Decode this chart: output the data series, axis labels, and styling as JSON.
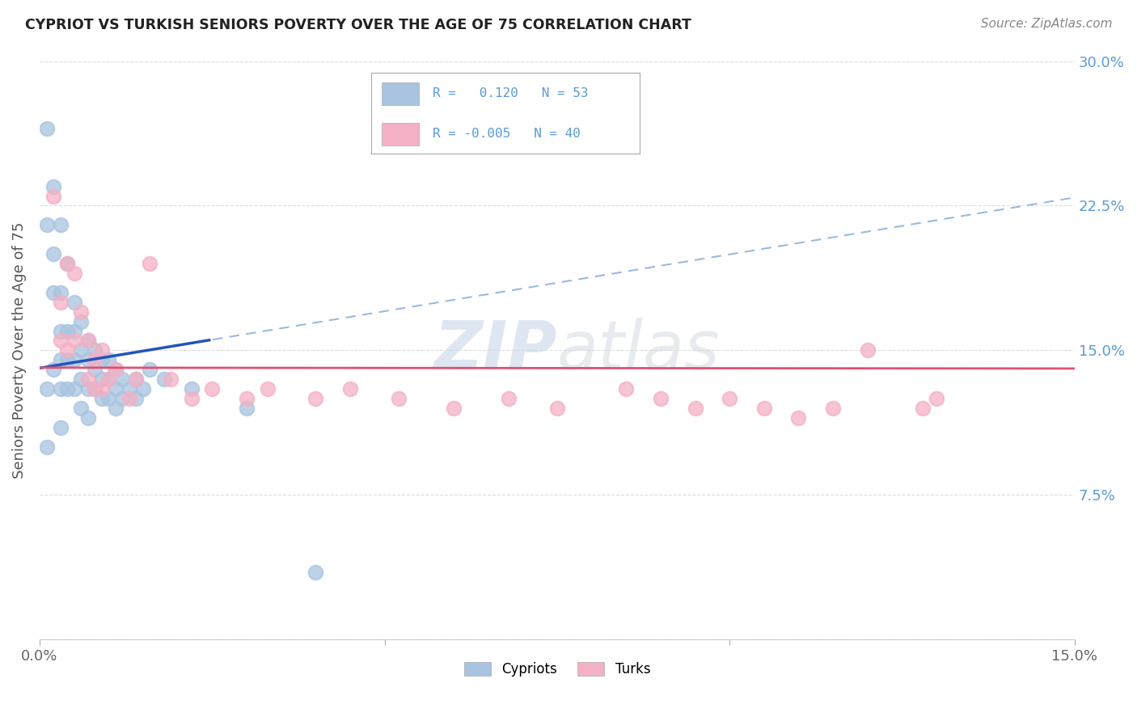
{
  "title": "CYPRIOT VS TURKISH SENIORS POVERTY OVER THE AGE OF 75 CORRELATION CHART",
  "source": "Source: ZipAtlas.com",
  "ylabel": "Seniors Poverty Over the Age of 75",
  "xmin": 0.0,
  "xmax": 0.15,
  "ymin": 0.0,
  "ymax": 0.3,
  "ytick_vals": [
    0.0,
    0.075,
    0.15,
    0.225,
    0.3
  ],
  "ytick_labels": [
    "",
    "7.5%",
    "15.0%",
    "22.5%",
    "30.0%"
  ],
  "xtick_vals": [
    0.0,
    0.05,
    0.1,
    0.15
  ],
  "xtick_labels": [
    "0.0%",
    "",
    "",
    "15.0%"
  ],
  "cypriot_color": "#a8c4e0",
  "turk_color": "#f4b0c4",
  "cypriot_line_color": "#2255bb",
  "turk_line_color": "#e05070",
  "cypriot_R": 0.12,
  "cypriot_N": 53,
  "turk_R": -0.005,
  "turk_N": 40,
  "watermark_text": "ZIPatlas",
  "background_color": "#ffffff",
  "grid_color": "#dddddd",
  "title_color": "#222222",
  "source_color": "#888888",
  "ylabel_color": "#555555",
  "tick_color": "#5b9bd5",
  "legend_text_color": "#5b9bd5",
  "legend_border_color": "#aaaaaa",
  "cypriot_x": [
    0.001,
    0.001,
    0.001,
    0.001,
    0.002,
    0.002,
    0.002,
    0.002,
    0.003,
    0.003,
    0.003,
    0.003,
    0.003,
    0.003,
    0.004,
    0.004,
    0.004,
    0.004,
    0.005,
    0.005,
    0.005,
    0.005,
    0.006,
    0.006,
    0.006,
    0.006,
    0.007,
    0.007,
    0.007,
    0.007,
    0.008,
    0.008,
    0.008,
    0.009,
    0.009,
    0.009,
    0.01,
    0.01,
    0.01,
    0.011,
    0.011,
    0.011,
    0.012,
    0.012,
    0.013,
    0.014,
    0.014,
    0.015,
    0.016,
    0.018,
    0.022,
    0.03,
    0.04
  ],
  "cypriot_y": [
    0.265,
    0.215,
    0.13,
    0.1,
    0.235,
    0.2,
    0.18,
    0.14,
    0.215,
    0.18,
    0.16,
    0.145,
    0.13,
    0.11,
    0.195,
    0.16,
    0.145,
    0.13,
    0.175,
    0.16,
    0.145,
    0.13,
    0.165,
    0.15,
    0.135,
    0.12,
    0.155,
    0.145,
    0.13,
    0.115,
    0.15,
    0.14,
    0.13,
    0.145,
    0.135,
    0.125,
    0.145,
    0.135,
    0.125,
    0.14,
    0.13,
    0.12,
    0.135,
    0.125,
    0.13,
    0.135,
    0.125,
    0.13,
    0.14,
    0.135,
    0.13,
    0.12,
    0.035
  ],
  "turk_x": [
    0.002,
    0.003,
    0.003,
    0.004,
    0.004,
    0.005,
    0.005,
    0.006,
    0.007,
    0.007,
    0.008,
    0.008,
    0.009,
    0.009,
    0.01,
    0.011,
    0.013,
    0.014,
    0.016,
    0.019,
    0.022,
    0.025,
    0.03,
    0.033,
    0.04,
    0.045,
    0.052,
    0.06,
    0.068,
    0.075,
    0.085,
    0.09,
    0.095,
    0.1,
    0.105,
    0.11,
    0.115,
    0.12,
    0.128,
    0.13
  ],
  "turk_y": [
    0.23,
    0.175,
    0.155,
    0.195,
    0.15,
    0.19,
    0.155,
    0.17,
    0.155,
    0.135,
    0.145,
    0.13,
    0.15,
    0.13,
    0.135,
    0.14,
    0.125,
    0.135,
    0.195,
    0.135,
    0.125,
    0.13,
    0.125,
    0.13,
    0.125,
    0.13,
    0.125,
    0.12,
    0.125,
    0.12,
    0.13,
    0.125,
    0.12,
    0.125,
    0.12,
    0.115,
    0.12,
    0.15,
    0.12,
    0.125
  ]
}
